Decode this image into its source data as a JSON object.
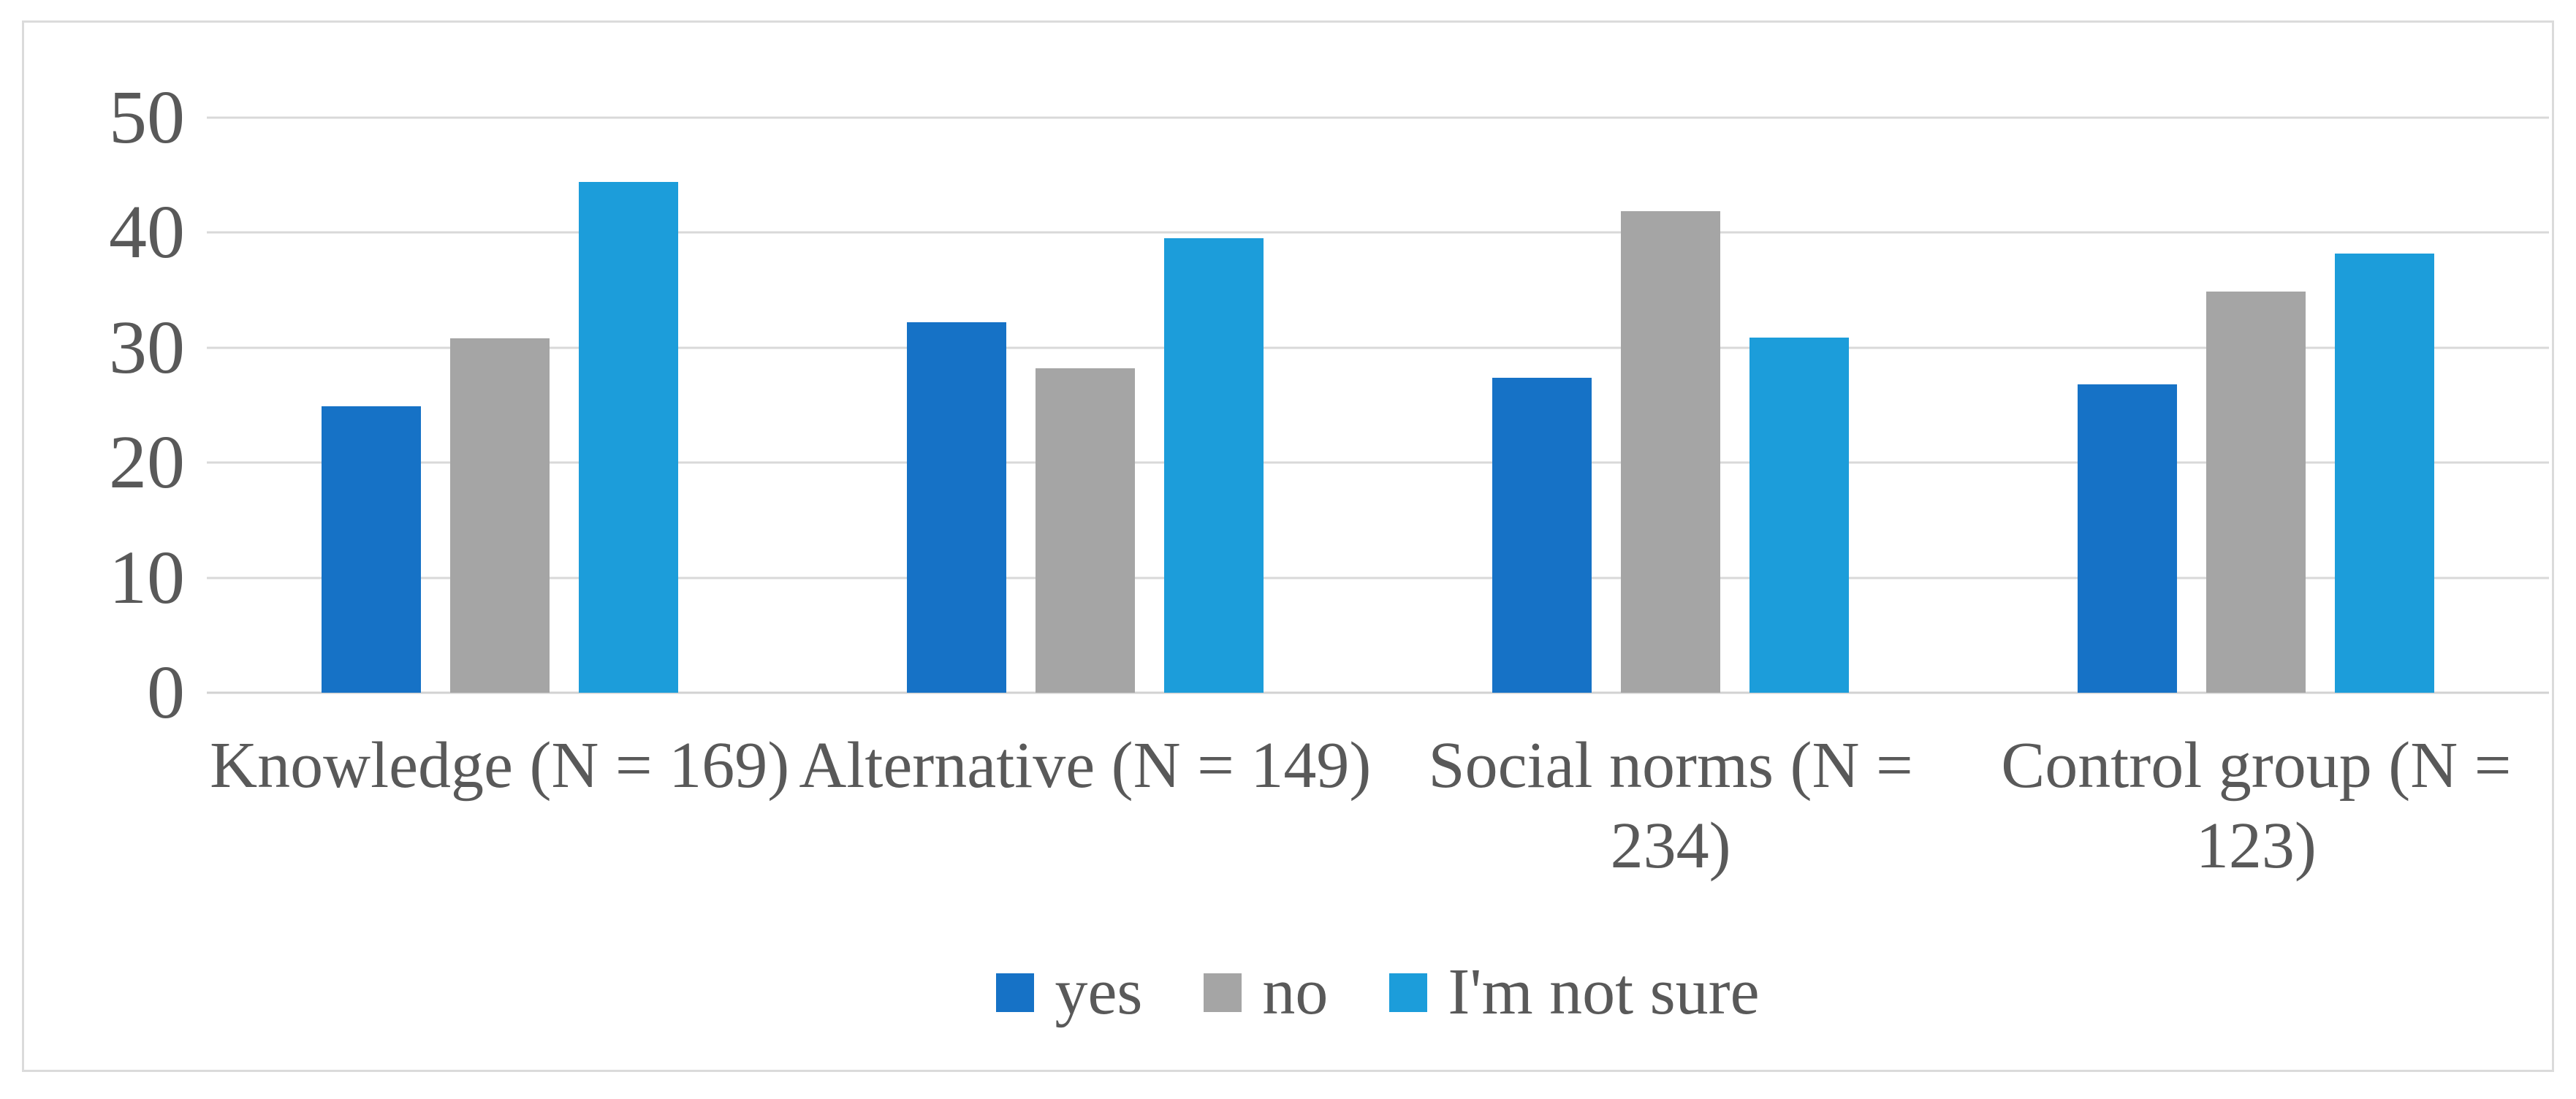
{
  "figure": {
    "background_color": "#ffffff",
    "frame_border_color": "#dbdbdb"
  },
  "chart_data": {
    "type": "bar",
    "title": "",
    "xlabel": "",
    "ylabel": "",
    "categories": [
      "Knowledge (N = 169)",
      "Alternative (N = 149)",
      "Social norms (N = 234)",
      "Control group (N = 123)"
    ],
    "category_label_lines": [
      [
        "Knowledge (N = 169)"
      ],
      [
        "Alternative (N = 149)"
      ],
      [
        "Social norms (N =",
        "234)"
      ],
      [
        "Control group (N =",
        "123)"
      ]
    ],
    "series": [
      {
        "name": "yes",
        "color": "#1672c6",
        "values": [
          24.9,
          32.2,
          27.4,
          26.8
        ]
      },
      {
        "name": "no",
        "color": "#a5a5a5",
        "values": [
          30.8,
          28.2,
          41.9,
          34.9
        ]
      },
      {
        "name": "I'm not sure",
        "color": "#1c9dda",
        "values": [
          44.4,
          39.5,
          30.9,
          38.2
        ]
      }
    ],
    "ylim": [
      0,
      50
    ],
    "yticks": [
      0,
      10,
      20,
      30,
      40,
      50
    ],
    "grid": "horizontal",
    "gridline_color": "#d9d9d9",
    "tick_label_color": "#595959",
    "legend_position": "bottom",
    "legend_entries": [
      "yes",
      "no",
      "I'm not sure"
    ]
  }
}
